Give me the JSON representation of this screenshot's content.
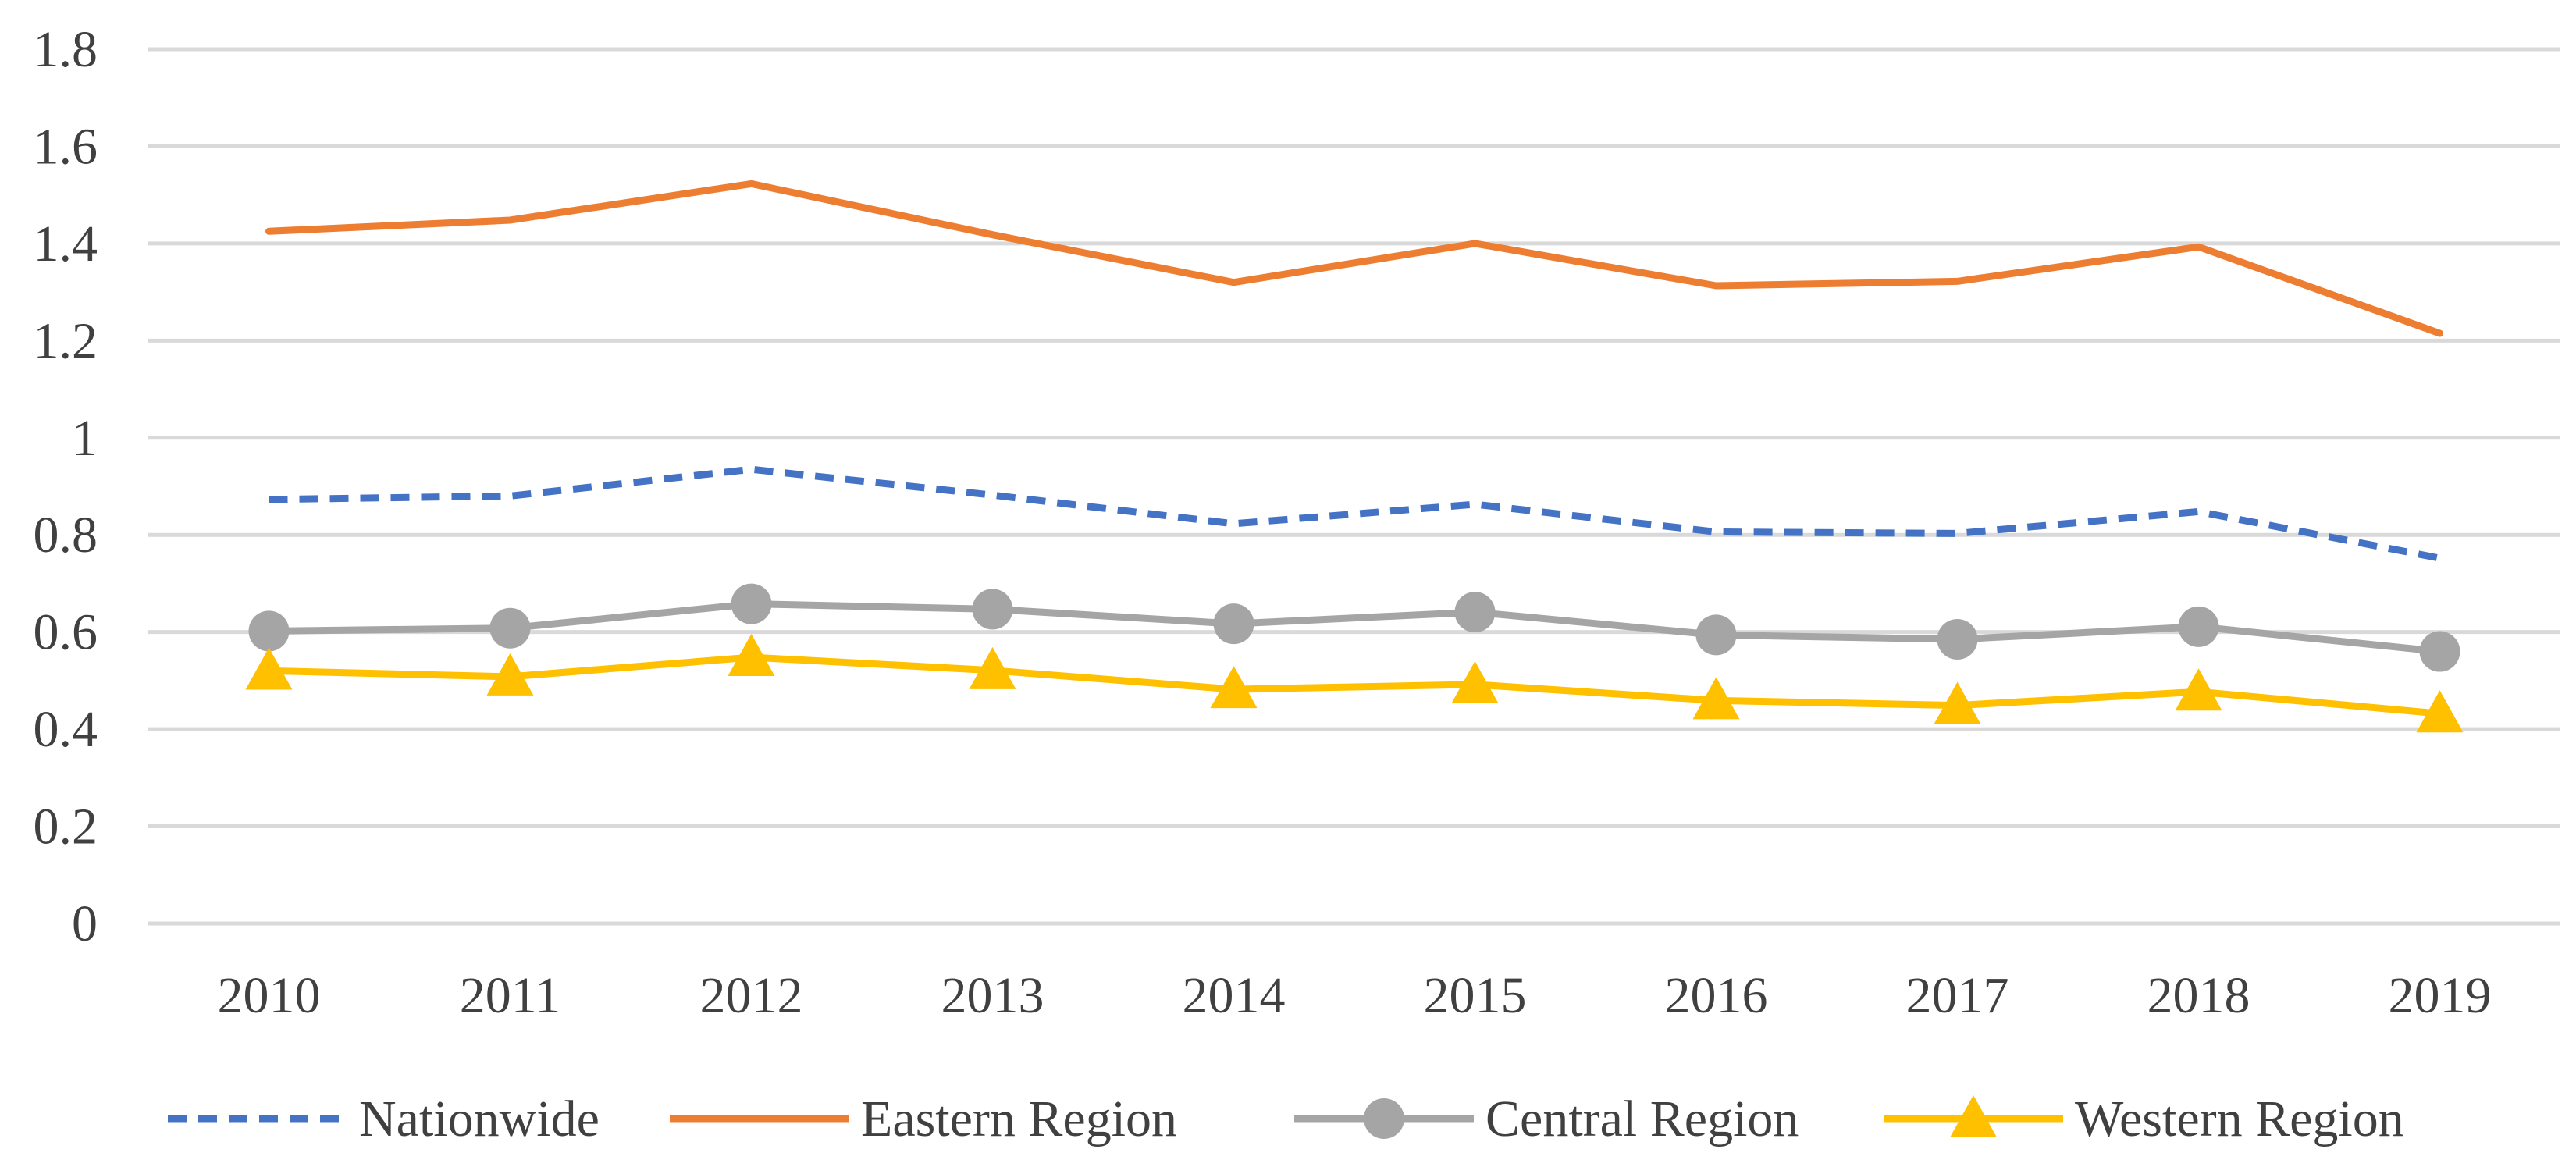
{
  "chart_data": {
    "type": "line",
    "title": "",
    "xlabel": "",
    "ylabel": "",
    "categories": [
      "2010",
      "2011",
      "2012",
      "2013",
      "2014",
      "2015",
      "2016",
      "2017",
      "2018",
      "2019"
    ],
    "ylim": [
      0,
      1.8
    ],
    "yticks": [
      {
        "value": 0,
        "label": "0"
      },
      {
        "value": 0.2,
        "label": "0.2"
      },
      {
        "value": 0.4,
        "label": "0.4"
      },
      {
        "value": 0.6,
        "label": "0.6"
      },
      {
        "value": 0.8,
        "label": "0.8"
      },
      {
        "value": 1.0,
        "label": "1"
      },
      {
        "value": 1.2,
        "label": "1.2"
      },
      {
        "value": 1.4,
        "label": "1.4"
      },
      {
        "value": 1.6,
        "label": "1.6"
      },
      {
        "value": 1.8,
        "label": "1.8"
      }
    ],
    "grid": true,
    "legend_position": "bottom",
    "series": [
      {
        "name": "Nationwide",
        "color": "#4472c4",
        "style": "dashed",
        "marker": "none",
        "values": [
          0.873,
          0.88,
          0.935,
          0.882,
          0.823,
          0.863,
          0.806,
          0.803,
          0.848,
          0.752
        ]
      },
      {
        "name": "Eastern Region",
        "color": "#ed7d31",
        "style": "solid",
        "marker": "none",
        "values": [
          1.425,
          1.448,
          1.523,
          1.418,
          1.32,
          1.4,
          1.313,
          1.322,
          1.393,
          1.215
        ]
      },
      {
        "name": "Central Region",
        "color": "#a5a5a5",
        "style": "solid",
        "marker": "circle",
        "values": [
          0.602,
          0.608,
          0.658,
          0.647,
          0.617,
          0.641,
          0.594,
          0.585,
          0.611,
          0.56
        ]
      },
      {
        "name": "Western Region",
        "color": "#ffc000",
        "style": "solid",
        "marker": "triangle",
        "values": [
          0.52,
          0.508,
          0.548,
          0.521,
          0.482,
          0.492,
          0.459,
          0.449,
          0.477,
          0.432
        ]
      }
    ]
  }
}
